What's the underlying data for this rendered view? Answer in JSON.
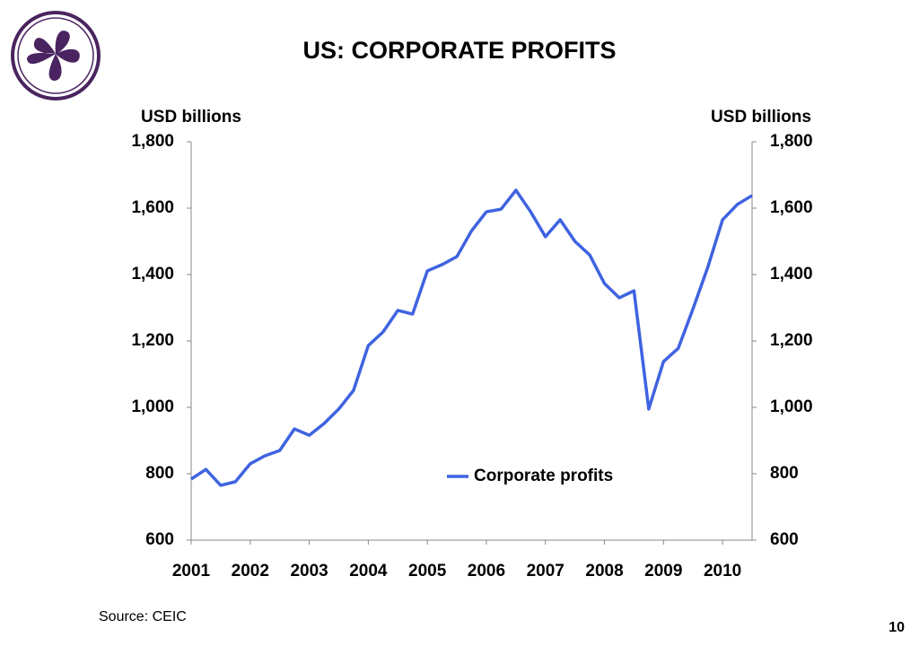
{
  "chart_data": {
    "type": "line",
    "title": "US: CORPORATE PROFITS",
    "y_label": "USD billions",
    "y2_label": "USD billions",
    "categories": [
      "2001",
      null,
      null,
      null,
      "2002",
      null,
      null,
      null,
      "2003",
      null,
      null,
      null,
      "2004",
      null,
      null,
      null,
      "2005",
      null,
      null,
      null,
      "2006",
      null,
      null,
      null,
      "2007",
      null,
      null,
      null,
      "2008",
      null,
      null,
      null,
      "2009",
      null,
      null,
      null,
      "2010",
      null,
      null
    ],
    "series": [
      {
        "name": "Corporate profits",
        "color": "#3f63e0",
        "values": [
          784,
          813,
          765,
          776,
          830,
          854,
          870,
          935,
          916,
          951,
          995,
          1051,
          1186,
          1227,
          1292,
          1281,
          1411,
          1430,
          1454,
          1532,
          1589,
          1597,
          1654,
          1589,
          1514,
          1565,
          1500,
          1459,
          1373,
          1330,
          1351,
          995,
          1138,
          1178,
          1297,
          1422,
          1565,
          1611,
          1638
        ]
      }
    ],
    "ylim": [
      600,
      1800
    ],
    "yticks": [
      600,
      800,
      {
        "value": 1000,
        "label": "1,000"
      },
      {
        "value": 1200,
        "label": "1,200"
      },
      {
        "value": 1400,
        "label": "1,400"
      },
      {
        "value": 1600,
        "label": "1,600"
      },
      {
        "value": 1800,
        "label": "1,800"
      }
    ],
    "y2lim": [
      600,
      1800
    ],
    "y2ticks": [
      600,
      800,
      {
        "value": 1000,
        "label": "1,000"
      },
      {
        "value": 1200,
        "label": "1,200"
      },
      {
        "value": 1400,
        "label": "1,400"
      },
      {
        "value": 1600,
        "label": "1,600"
      },
      {
        "value": 1800,
        "label": "1,800"
      }
    ],
    "grid": false,
    "legend": "lower center"
  },
  "source": "Source: CEIC",
  "page_number": "10"
}
